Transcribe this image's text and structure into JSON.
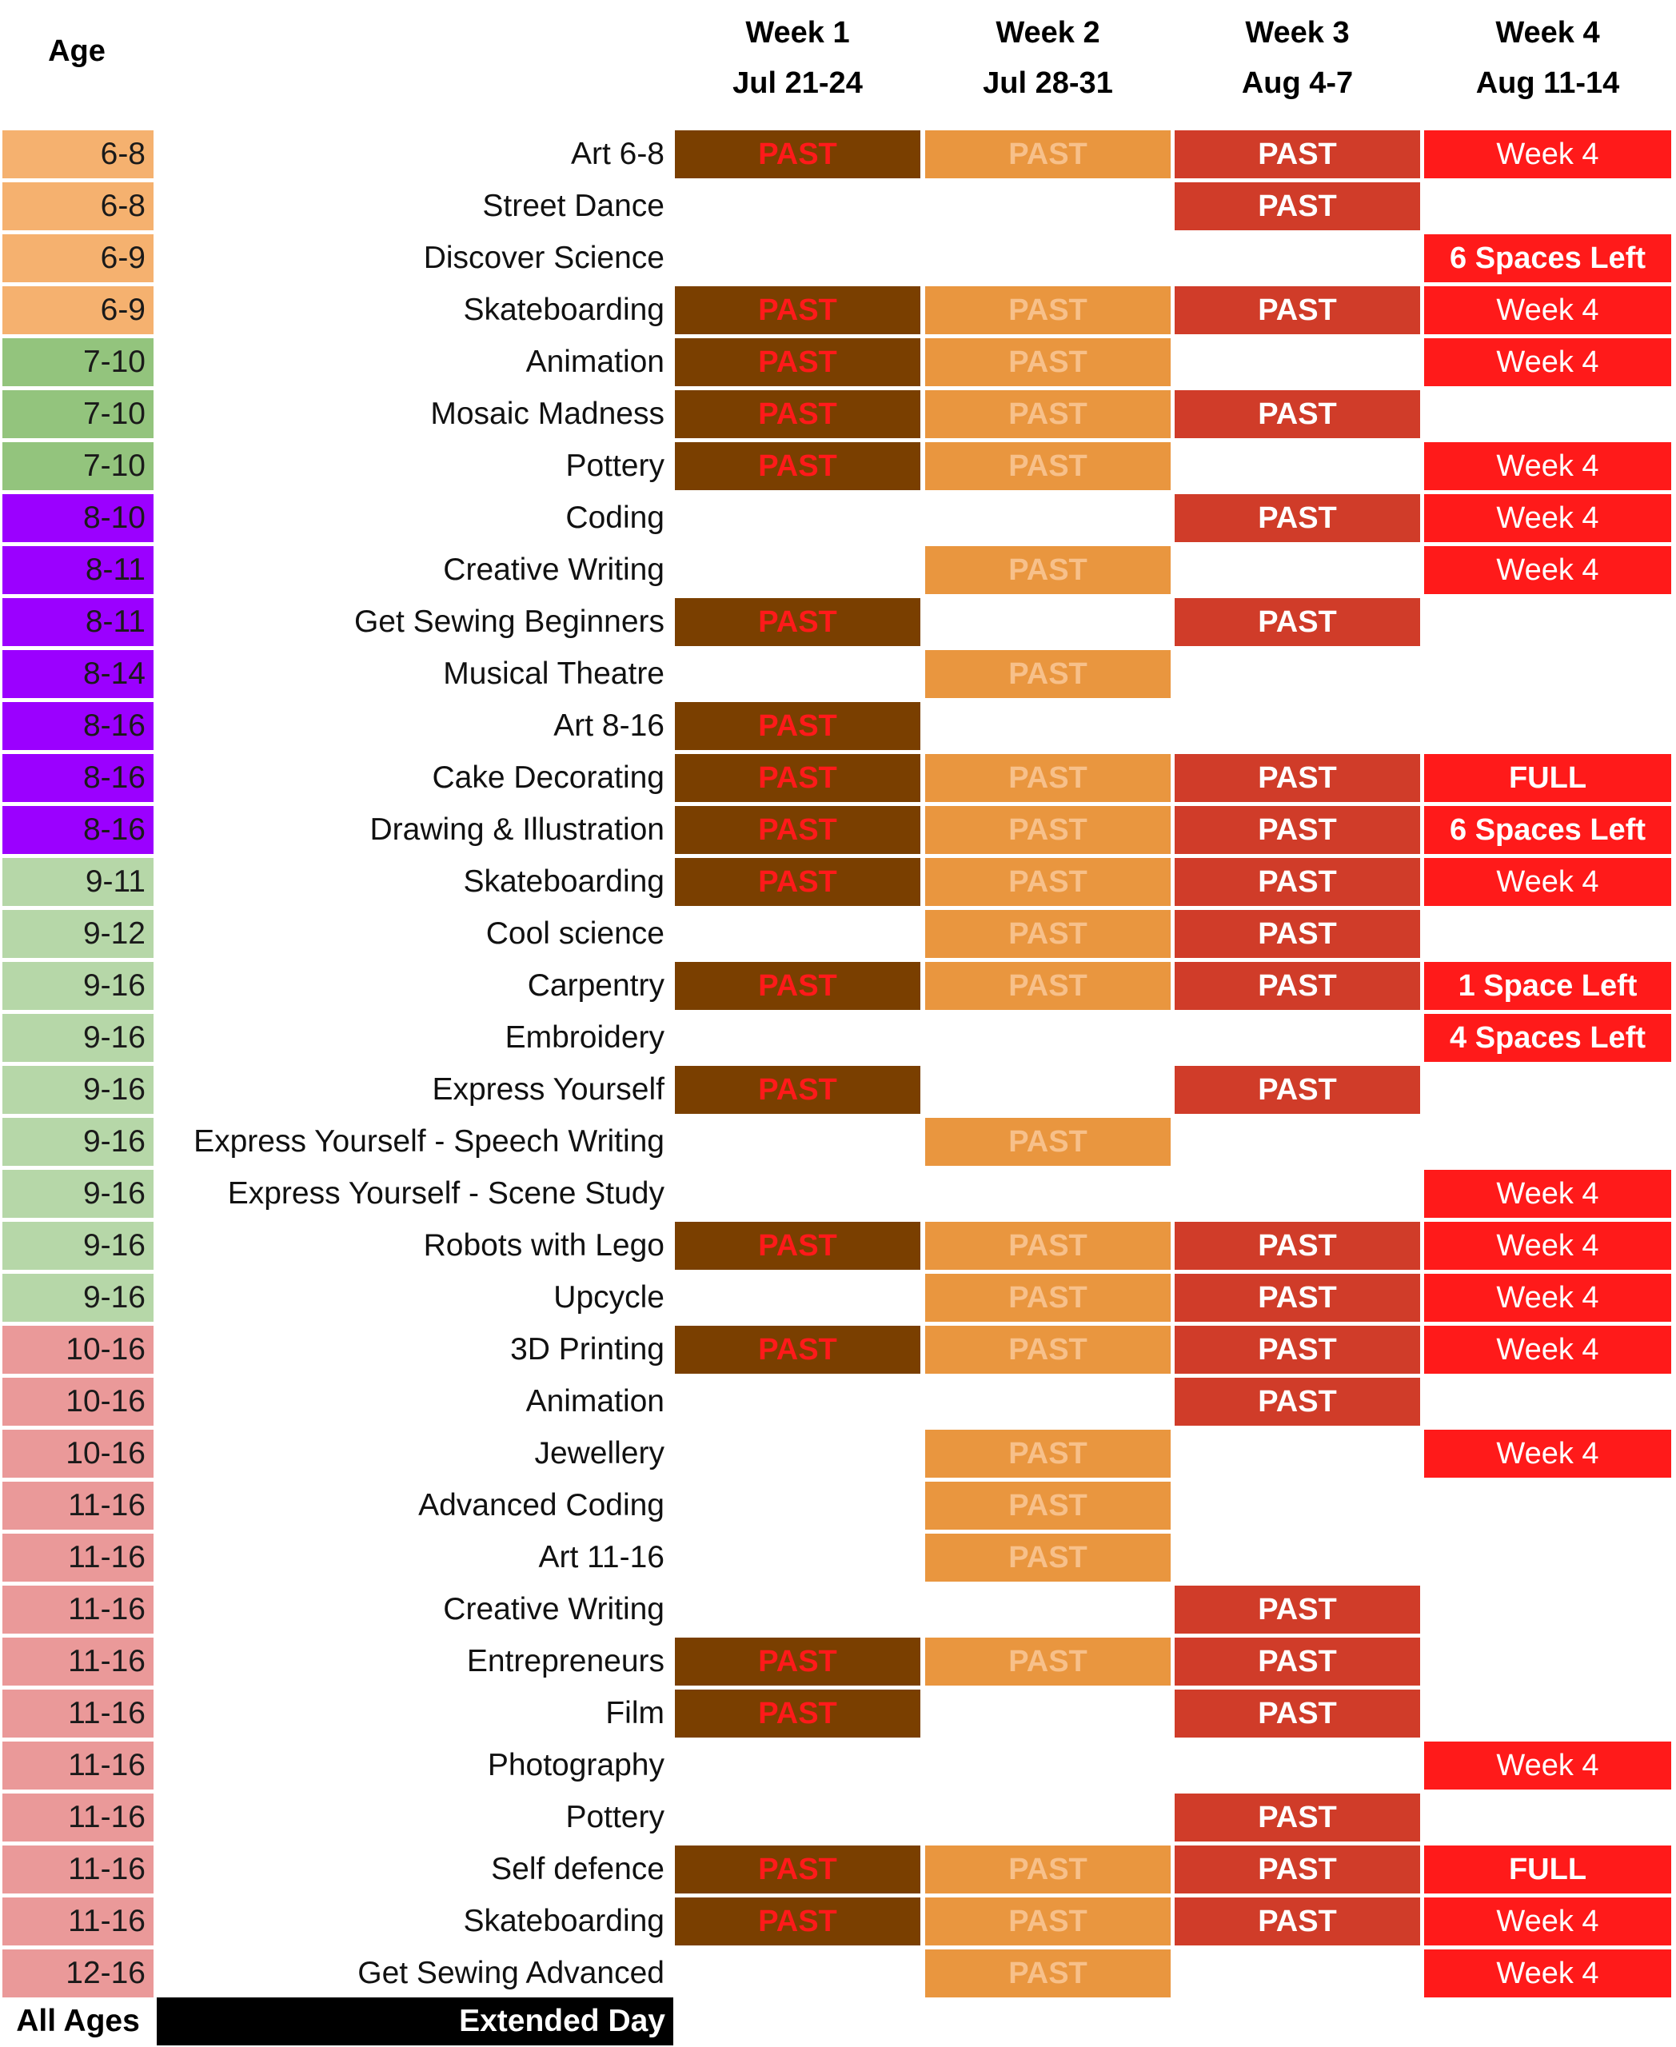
{
  "header": {
    "age_label": "Age",
    "weeks": [
      {
        "title": "Week 1",
        "dates": "Jul 21-24"
      },
      {
        "title": "Week 2",
        "dates": "Jul 28-31"
      },
      {
        "title": "Week 3",
        "dates": "Aug 4-7"
      },
      {
        "title": "Week 4",
        "dates": "Aug 11-14"
      }
    ]
  },
  "colors": {
    "age_6_9": "#f5b16f",
    "age_7_10": "#93c47d",
    "age_8_16": "#9b00ff",
    "age_9_16": "#b6d7a8",
    "age_10_16": "#ea9999",
    "week1_bg": "#7a3f00",
    "week1_text": "#ff1a1a",
    "week2_bg": "#e9963f",
    "week2_text": "#f7c08a",
    "week3_bg": "#d03c29",
    "week4_bg": "#ff1a1a"
  },
  "rows": [
    {
      "age": "6-8",
      "age_color": "#f5b16f",
      "name": "Art 6-8",
      "w1": "PAST",
      "w2": "PAST",
      "w3": "PAST",
      "w4": "Week 4"
    },
    {
      "age": "6-8",
      "age_color": "#f5b16f",
      "name": "Street Dance",
      "w1": "",
      "w2": "",
      "w3": "PAST",
      "w4": ""
    },
    {
      "age": "6-9",
      "age_color": "#f5b16f",
      "name": "Discover Science",
      "w1": "",
      "w2": "",
      "w3": "",
      "w4": "6 Spaces Left"
    },
    {
      "age": "6-9",
      "age_color": "#f5b16f",
      "name": "Skateboarding",
      "w1": "PAST",
      "w2": "PAST",
      "w3": "PAST",
      "w4": "Week 4"
    },
    {
      "age": "7-10",
      "age_color": "#93c47d",
      "name": "Animation",
      "w1": "PAST",
      "w2": "PAST",
      "w3": "",
      "w4": "Week 4"
    },
    {
      "age": "7-10",
      "age_color": "#93c47d",
      "name": "Mosaic Madness",
      "w1": "PAST",
      "w2": "PAST",
      "w3": "PAST",
      "w4": ""
    },
    {
      "age": "7-10",
      "age_color": "#93c47d",
      "name": "Pottery",
      "w1": "PAST",
      "w2": "PAST",
      "w3": "",
      "w4": "Week 4"
    },
    {
      "age": "8-10",
      "age_color": "#9b00ff",
      "name": "Coding",
      "w1": "",
      "w2": "",
      "w3": "PAST",
      "w4": "Week 4"
    },
    {
      "age": "8-11",
      "age_color": "#9b00ff",
      "name": "Creative Writing",
      "w1": "",
      "w2": "PAST",
      "w3": "",
      "w4": "Week 4"
    },
    {
      "age": "8-11",
      "age_color": "#9b00ff",
      "name": "Get Sewing Beginners",
      "w1": "PAST",
      "w2": "",
      "w3": "PAST",
      "w4": ""
    },
    {
      "age": "8-14",
      "age_color": "#9b00ff",
      "name": "Musical Theatre",
      "w1": "",
      "w2": "PAST",
      "w3": "",
      "w4": ""
    },
    {
      "age": "8-16",
      "age_color": "#9b00ff",
      "name": "Art 8-16",
      "w1": "PAST",
      "w2": "",
      "w3": "",
      "w4": ""
    },
    {
      "age": "8-16",
      "age_color": "#9b00ff",
      "name": "Cake Decorating",
      "w1": "PAST",
      "w2": "PAST",
      "w3": "PAST",
      "w4": "FULL"
    },
    {
      "age": "8-16",
      "age_color": "#9b00ff",
      "name": "Drawing & Illustration",
      "w1": "PAST",
      "w2": "PAST",
      "w3": "PAST",
      "w4": "6 Spaces Left"
    },
    {
      "age": "9-11",
      "age_color": "#b6d7a8",
      "name": "Skateboarding",
      "w1": "PAST",
      "w2": "PAST",
      "w3": "PAST",
      "w4": "Week 4"
    },
    {
      "age": "9-12",
      "age_color": "#b6d7a8",
      "name": "Cool science",
      "w1": "",
      "w2": "PAST",
      "w3": "PAST",
      "w4": ""
    },
    {
      "age": "9-16",
      "age_color": "#b6d7a8",
      "name": "Carpentry",
      "w1": "PAST",
      "w2": "PAST",
      "w3": "PAST",
      "w4": "1 Space Left"
    },
    {
      "age": "9-16",
      "age_color": "#b6d7a8",
      "name": "Embroidery",
      "w1": "",
      "w2": "",
      "w3": "",
      "w4": "4 Spaces Left"
    },
    {
      "age": "9-16",
      "age_color": "#b6d7a8",
      "name": "Express Yourself",
      "w1": "PAST",
      "w2": "",
      "w3": "PAST",
      "w4": ""
    },
    {
      "age": "9-16",
      "age_color": "#b6d7a8",
      "name": "Express Yourself - Speech Writing",
      "w1": "",
      "w2": "PAST",
      "w3": "",
      "w4": ""
    },
    {
      "age": "9-16",
      "age_color": "#b6d7a8",
      "name": "Express Yourself - Scene Study",
      "w1": "",
      "w2": "",
      "w3": "",
      "w4": "Week 4"
    },
    {
      "age": "9-16",
      "age_color": "#b6d7a8",
      "name": "Robots with Lego",
      "w1": "PAST",
      "w2": "PAST",
      "w3": "PAST",
      "w4": "Week 4"
    },
    {
      "age": "9-16",
      "age_color": "#b6d7a8",
      "name": "Upcycle",
      "w1": "",
      "w2": "PAST",
      "w3": "PAST",
      "w4": "Week 4"
    },
    {
      "age": "10-16",
      "age_color": "#ea9999",
      "name": "3D Printing",
      "w1": "PAST",
      "w2": "PAST",
      "w3": "PAST",
      "w4": "Week 4"
    },
    {
      "age": "10-16",
      "age_color": "#ea9999",
      "name": "Animation",
      "w1": "",
      "w2": "",
      "w3": "PAST",
      "w4": ""
    },
    {
      "age": "10-16",
      "age_color": "#ea9999",
      "name": "Jewellery",
      "w1": "",
      "w2": "PAST",
      "w3": "",
      "w4": "Week 4"
    },
    {
      "age": "11-16",
      "age_color": "#ea9999",
      "name": "Advanced Coding",
      "w1": "",
      "w2": "PAST",
      "w3": "",
      "w4": ""
    },
    {
      "age": "11-16",
      "age_color": "#ea9999",
      "name": "Art 11-16",
      "w1": "",
      "w2": "PAST",
      "w3": "",
      "w4": ""
    },
    {
      "age": "11-16",
      "age_color": "#ea9999",
      "name": "Creative Writing",
      "w1": "",
      "w2": "",
      "w3": "PAST",
      "w4": ""
    },
    {
      "age": "11-16",
      "age_color": "#ea9999",
      "name": "Entrepreneurs",
      "w1": "PAST",
      "w2": "PAST",
      "w3": "PAST",
      "w4": ""
    },
    {
      "age": "11-16",
      "age_color": "#ea9999",
      "name": "Film",
      "w1": "PAST",
      "w2": "",
      "w3": "PAST",
      "w4": ""
    },
    {
      "age": "11-16",
      "age_color": "#ea9999",
      "name": "Photography",
      "w1": "",
      "w2": "",
      "w3": "",
      "w4": "Week 4"
    },
    {
      "age": "11-16",
      "age_color": "#ea9999",
      "name": "Pottery",
      "w1": "",
      "w2": "",
      "w3": "PAST",
      "w4": ""
    },
    {
      "age": "11-16",
      "age_color": "#ea9999",
      "name": "Self defence",
      "w1": "PAST",
      "w2": "PAST",
      "w3": "PAST",
      "w4": "FULL"
    },
    {
      "age": "11-16",
      "age_color": "#ea9999",
      "name": "Skateboarding",
      "w1": "PAST",
      "w2": "PAST",
      "w3": "PAST",
      "w4": "Week 4"
    },
    {
      "age": "12-16",
      "age_color": "#ea9999",
      "name": "Get Sewing Advanced",
      "w1": "",
      "w2": "PAST",
      "w3": "",
      "w4": "Week 4"
    }
  ],
  "footer": {
    "age": "All Ages",
    "label": "Extended Day"
  }
}
